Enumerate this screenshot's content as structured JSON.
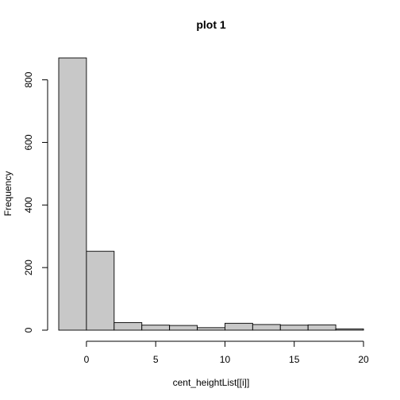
{
  "chart_data": {
    "type": "bar",
    "title": "plot 1",
    "xlabel": "cent_heightList[[i]]",
    "ylabel": "Frequency",
    "bin_edges": [
      -2,
      0,
      2,
      4,
      6,
      8,
      10,
      12,
      14,
      16,
      18,
      20
    ],
    "values": [
      870,
      252,
      24,
      16,
      15,
      8,
      22,
      18,
      16,
      17,
      4
    ],
    "xlim": [
      -2,
      20
    ],
    "ylim": [
      0,
      870
    ],
    "x_ticks": [
      0,
      5,
      10,
      15,
      20
    ],
    "y_ticks": [
      0,
      200,
      400,
      600,
      800
    ],
    "grid": false,
    "bar_color": "#c8c8c8",
    "edge_color": "#000000"
  }
}
